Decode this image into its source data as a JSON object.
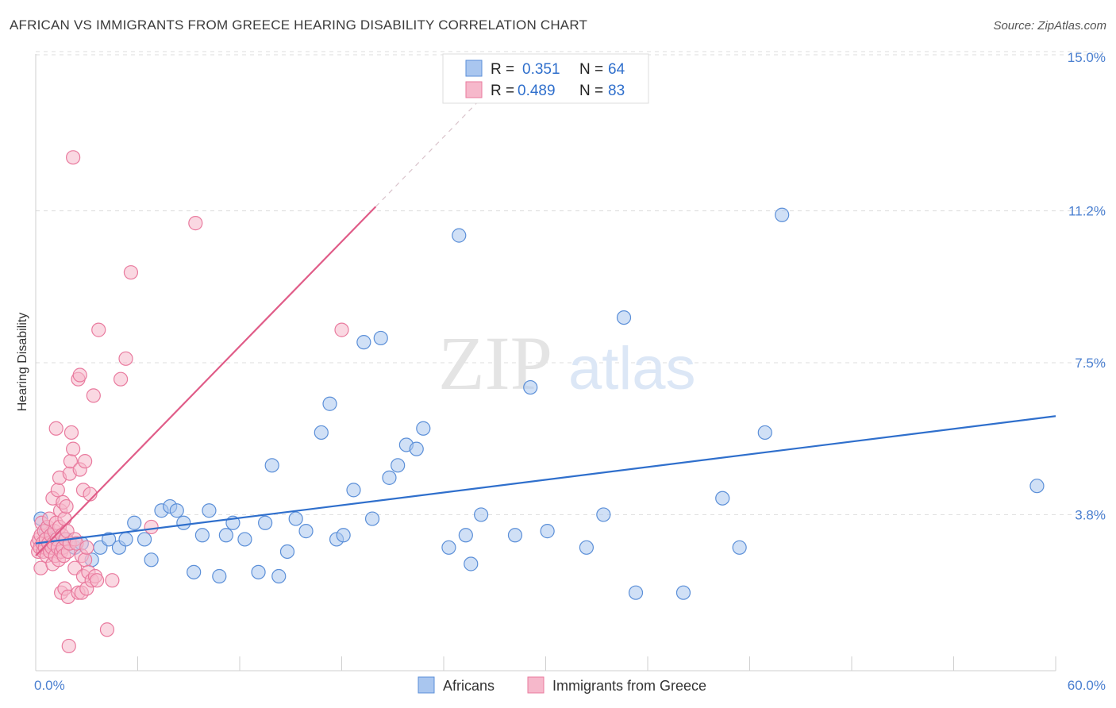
{
  "title": "AFRICAN VS IMMIGRANTS FROM GREECE HEARING DISABILITY CORRELATION CHART",
  "source": "Source: ZipAtlas.com",
  "watermark": {
    "zip": "ZIP",
    "atlas": "atlas"
  },
  "colors": {
    "blue_fill": "#a9c6ef",
    "blue_stroke": "#5b8fd8",
    "blue_line": "#2f6fcc",
    "pink_fill": "#f6b8cb",
    "pink_stroke": "#e97a9e",
    "pink_line": "#e05c88",
    "grid": "#dddddd",
    "tick_label": "#4a7fd0"
  },
  "legend": {
    "rows": [
      {
        "r_label": "R =",
        "r_value": "0.351",
        "n_label": "N =",
        "n_value": "64"
      },
      {
        "r_label": "R =",
        "r_value": "0.489",
        "n_label": "N =",
        "n_value": "83"
      }
    ]
  },
  "bottom_legend": [
    "Africans",
    "Immigrants from Greece"
  ],
  "chart_data": {
    "type": "scatter",
    "title": "AFRICAN VS IMMIGRANTS FROM GREECE HEARING DISABILITY CORRELATION CHART",
    "xlabel": "",
    "ylabel": "Hearing Disability",
    "xlim": [
      0,
      60
    ],
    "ylim": [
      0,
      15
    ],
    "x_tick_labels": [
      "0.0%",
      "60.0%"
    ],
    "y_ticks": [
      3.8,
      7.5,
      11.2,
      15.0
    ],
    "y_tick_labels": [
      "3.8%",
      "7.5%",
      "11.2%",
      "15.0%"
    ],
    "grid": true,
    "legend_position": "top-center",
    "series": [
      {
        "name": "Africans",
        "R": 0.351,
        "N": 64,
        "trend": {
          "x": [
            0,
            60
          ],
          "y": [
            3.1,
            6.2
          ]
        },
        "points": [
          [
            0.3,
            3.7
          ],
          [
            0.6,
            3.4
          ],
          [
            1.0,
            3.3
          ],
          [
            1.3,
            3.0
          ],
          [
            1.8,
            3.2
          ],
          [
            2.3,
            3.0
          ],
          [
            2.7,
            3.1
          ],
          [
            3.3,
            2.7
          ],
          [
            3.8,
            3.0
          ],
          [
            4.3,
            3.2
          ],
          [
            4.9,
            3.0
          ],
          [
            5.3,
            3.2
          ],
          [
            5.8,
            3.6
          ],
          [
            6.4,
            3.2
          ],
          [
            6.8,
            2.7
          ],
          [
            7.4,
            3.9
          ],
          [
            7.9,
            4.0
          ],
          [
            8.3,
            3.9
          ],
          [
            8.7,
            3.6
          ],
          [
            9.3,
            2.4
          ],
          [
            9.8,
            3.3
          ],
          [
            10.2,
            3.9
          ],
          [
            10.8,
            2.3
          ],
          [
            11.2,
            3.3
          ],
          [
            11.6,
            3.6
          ],
          [
            12.3,
            3.2
          ],
          [
            13.1,
            2.4
          ],
          [
            13.5,
            3.6
          ],
          [
            13.9,
            5.0
          ],
          [
            14.3,
            2.3
          ],
          [
            14.8,
            2.9
          ],
          [
            15.3,
            3.7
          ],
          [
            15.9,
            3.4
          ],
          [
            16.8,
            5.8
          ],
          [
            17.3,
            6.5
          ],
          [
            17.7,
            3.2
          ],
          [
            18.1,
            3.3
          ],
          [
            18.7,
            4.4
          ],
          [
            19.3,
            8.0
          ],
          [
            19.8,
            3.7
          ],
          [
            20.3,
            8.1
          ],
          [
            20.8,
            4.7
          ],
          [
            21.3,
            5.0
          ],
          [
            21.8,
            5.5
          ],
          [
            22.4,
            5.4
          ],
          [
            22.8,
            5.9
          ],
          [
            24.3,
            3.0
          ],
          [
            24.9,
            10.6
          ],
          [
            25.3,
            3.3
          ],
          [
            25.6,
            2.6
          ],
          [
            26.2,
            3.8
          ],
          [
            28.2,
            3.3
          ],
          [
            29.1,
            6.9
          ],
          [
            30.1,
            3.4
          ],
          [
            32.4,
            3.0
          ],
          [
            33.4,
            3.8
          ],
          [
            34.6,
            8.6
          ],
          [
            35.3,
            1.9
          ],
          [
            38.1,
            1.9
          ],
          [
            40.4,
            4.2
          ],
          [
            41.4,
            3.0
          ],
          [
            42.9,
            5.8
          ],
          [
            43.9,
            11.1
          ],
          [
            58.9,
            4.5
          ]
        ]
      },
      {
        "name": "Immigrants from Greece",
        "R": 0.489,
        "N": 83,
        "trend": {
          "x": [
            0,
            20
          ],
          "y": [
            2.8,
            11.3
          ]
        },
        "points": [
          [
            0.1,
            3.1
          ],
          [
            0.15,
            2.9
          ],
          [
            0.2,
            3.2
          ],
          [
            0.25,
            3.0
          ],
          [
            0.3,
            3.3
          ],
          [
            0.3,
            2.5
          ],
          [
            0.35,
            3.6
          ],
          [
            0.4,
            3.1
          ],
          [
            0.45,
            2.9
          ],
          [
            0.5,
            3.4
          ],
          [
            0.55,
            3.0
          ],
          [
            0.6,
            3.2
          ],
          [
            0.65,
            2.8
          ],
          [
            0.7,
            3.5
          ],
          [
            0.75,
            3.1
          ],
          [
            0.8,
            3.7
          ],
          [
            0.85,
            2.9
          ],
          [
            0.9,
            3.3
          ],
          [
            0.95,
            3.0
          ],
          [
            1.0,
            2.6
          ],
          [
            1.0,
            4.2
          ],
          [
            1.05,
            3.1
          ],
          [
            1.1,
            3.4
          ],
          [
            1.15,
            2.8
          ],
          [
            1.2,
            3.6
          ],
          [
            1.2,
            5.9
          ],
          [
            1.25,
            3.2
          ],
          [
            1.3,
            4.4
          ],
          [
            1.3,
            3.0
          ],
          [
            1.35,
            2.7
          ],
          [
            1.4,
            4.7
          ],
          [
            1.4,
            3.5
          ],
          [
            1.45,
            3.9
          ],
          [
            1.5,
            2.9
          ],
          [
            1.5,
            1.9
          ],
          [
            1.55,
            3.3
          ],
          [
            1.6,
            4.1
          ],
          [
            1.6,
            3.0
          ],
          [
            1.65,
            2.8
          ],
          [
            1.7,
            3.7
          ],
          [
            1.7,
            2.0
          ],
          [
            1.75,
            3.2
          ],
          [
            1.8,
            4.0
          ],
          [
            1.85,
            3.4
          ],
          [
            1.9,
            2.9
          ],
          [
            1.9,
            1.8
          ],
          [
            1.95,
            0.6
          ],
          [
            2.0,
            3.1
          ],
          [
            2.0,
            4.8
          ],
          [
            2.05,
            5.1
          ],
          [
            2.1,
            5.8
          ],
          [
            2.2,
            5.4
          ],
          [
            2.3,
            3.2
          ],
          [
            2.3,
            2.5
          ],
          [
            2.4,
            3.1
          ],
          [
            2.5,
            1.9
          ],
          [
            2.5,
            7.1
          ],
          [
            2.6,
            4.9
          ],
          [
            2.6,
            7.2
          ],
          [
            2.7,
            2.8
          ],
          [
            2.7,
            1.9
          ],
          [
            2.8,
            4.4
          ],
          [
            2.8,
            2.3
          ],
          [
            2.9,
            2.7
          ],
          [
            2.9,
            5.1
          ],
          [
            3.0,
            2.0
          ],
          [
            3.0,
            3.0
          ],
          [
            3.1,
            2.4
          ],
          [
            3.2,
            4.3
          ],
          [
            3.3,
            2.2
          ],
          [
            3.4,
            6.7
          ],
          [
            3.5,
            2.3
          ],
          [
            3.6,
            2.2
          ],
          [
            3.7,
            8.3
          ],
          [
            4.2,
            1.0
          ],
          [
            4.5,
            2.2
          ],
          [
            5.0,
            7.1
          ],
          [
            5.3,
            7.6
          ],
          [
            5.6,
            9.7
          ],
          [
            6.8,
            3.5
          ],
          [
            9.4,
            10.9
          ],
          [
            18.0,
            8.3
          ],
          [
            2.2,
            12.5
          ]
        ]
      }
    ]
  }
}
